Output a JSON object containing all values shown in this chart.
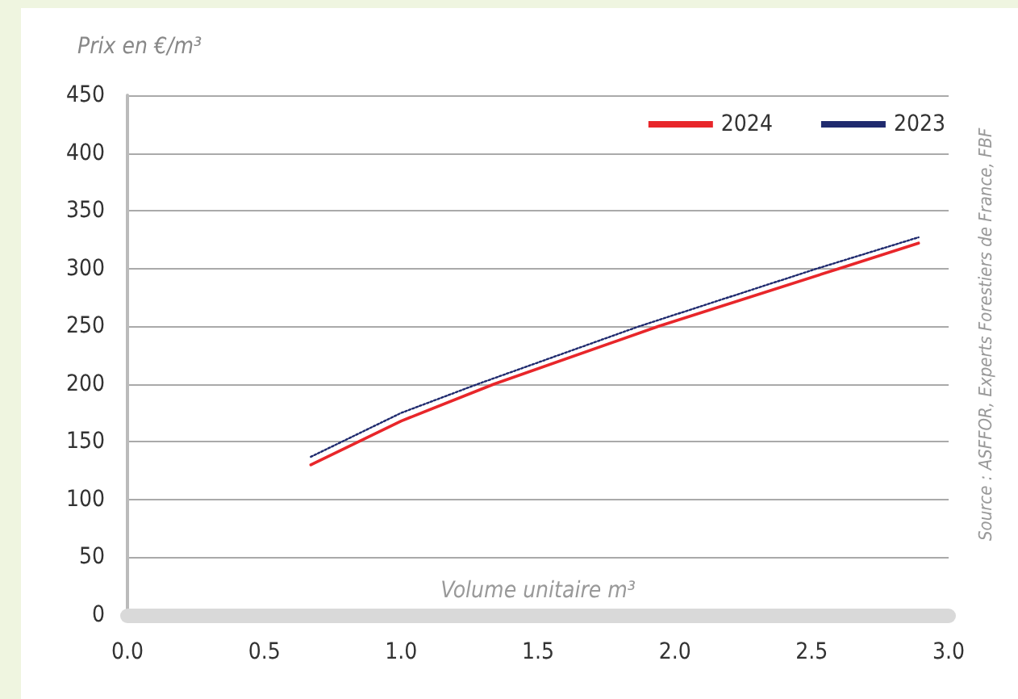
{
  "chart_data": {
    "type": "line",
    "ylabel": "Prix en €/m³",
    "xlabel": "Volume unitaire m³",
    "annotations": [
      "Source : ASFFOR, Experts Forestiers de France, FBF"
    ],
    "series": [
      {
        "name": "2024",
        "color": "#e8262a",
        "line_style": "solid",
        "x": [
          0.67,
          1.0,
          1.34,
          1.94,
          2.6,
          2.89
        ],
        "values": [
          130,
          168,
          200,
          250,
          300,
          322
        ]
      },
      {
        "name": "2023",
        "color": "#1f2a6e",
        "line_style": "dotted",
        "x": [
          0.67,
          1.0,
          1.28,
          1.87,
          2.52,
          2.89
        ],
        "values": [
          137,
          175,
          200,
          250,
          300,
          327
        ]
      }
    ],
    "xlim": [
      0,
      3
    ],
    "xticks": [
      {
        "value": 0,
        "label": "0.0"
      },
      0.5,
      {
        "value": 1,
        "label": "1.0"
      },
      1.5,
      {
        "value": 2,
        "label": "2.0"
      },
      2.5,
      {
        "value": 3,
        "label": "3.0"
      }
    ],
    "ylim": [
      0,
      450
    ],
    "yticks": [
      0,
      50,
      100,
      150,
      200,
      250,
      300,
      350,
      400,
      450
    ],
    "grid": "y",
    "legend": "top right",
    "marker": "none"
  }
}
